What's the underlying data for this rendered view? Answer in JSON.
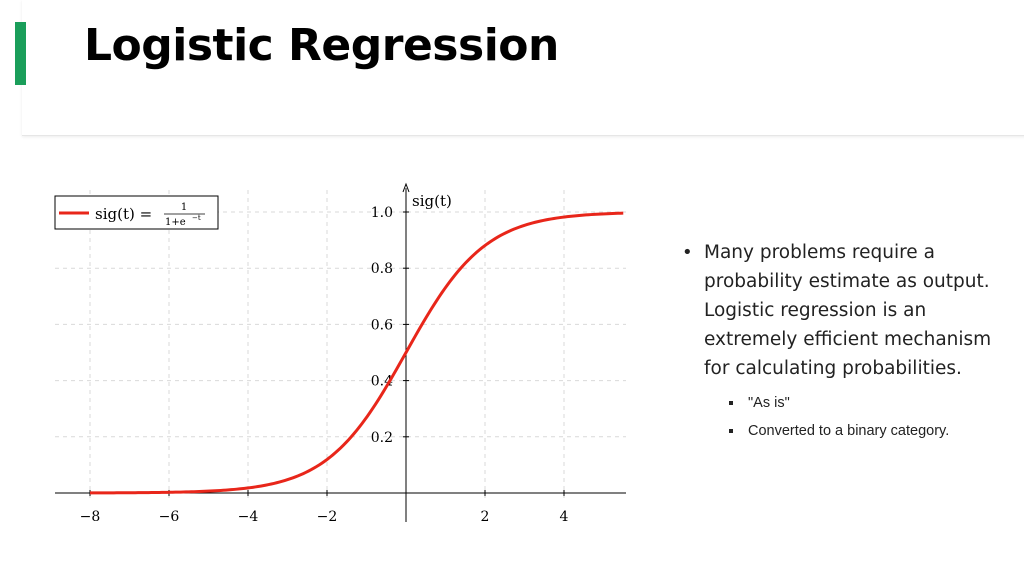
{
  "slide": {
    "title": "Logistic Regression",
    "accent_color": "#1a9e5a"
  },
  "chart_data": {
    "type": "line",
    "function": "sig(t) = 1/(1+e^-t)",
    "ylabel": "sig(t)",
    "legend": {
      "placement": "top-left",
      "label_prefix": "sig(t) =",
      "fraction_numerator": "1",
      "fraction_denominator": "1+e",
      "fraction_exponent": "−t"
    },
    "xlim": [
      -8.8,
      5.5
    ],
    "ylim": [
      -0.02,
      1.1
    ],
    "x_ticks": [
      "−8",
      "−6",
      "−4",
      "−2",
      "2",
      "4"
    ],
    "y_ticks": [
      "0.2",
      "0.4",
      "0.6",
      "0.8",
      "1.0"
    ],
    "grid": true,
    "series": [
      {
        "color": "#e8261a",
        "x": [
          -8,
          -7,
          -6,
          -5,
          -4,
          -3,
          -2,
          -1.5,
          -1,
          -0.5,
          0,
          0.5,
          1,
          1.5,
          2,
          3,
          4,
          5,
          5.5
        ],
        "y": [
          0.0003,
          0.0009,
          0.0025,
          0.0067,
          0.018,
          0.047,
          0.119,
          0.182,
          0.269,
          0.378,
          0.5,
          0.622,
          0.731,
          0.818,
          0.881,
          0.953,
          0.982,
          0.993,
          0.996
        ]
      }
    ]
  },
  "bullets": [
    {
      "text": "Many problems require a probability estimate as output. Logistic regression is an extremely efficient mechanism for calculating probabilities.",
      "sub": [
        "\"As is\"",
        "Converted to a binary category."
      ]
    }
  ]
}
